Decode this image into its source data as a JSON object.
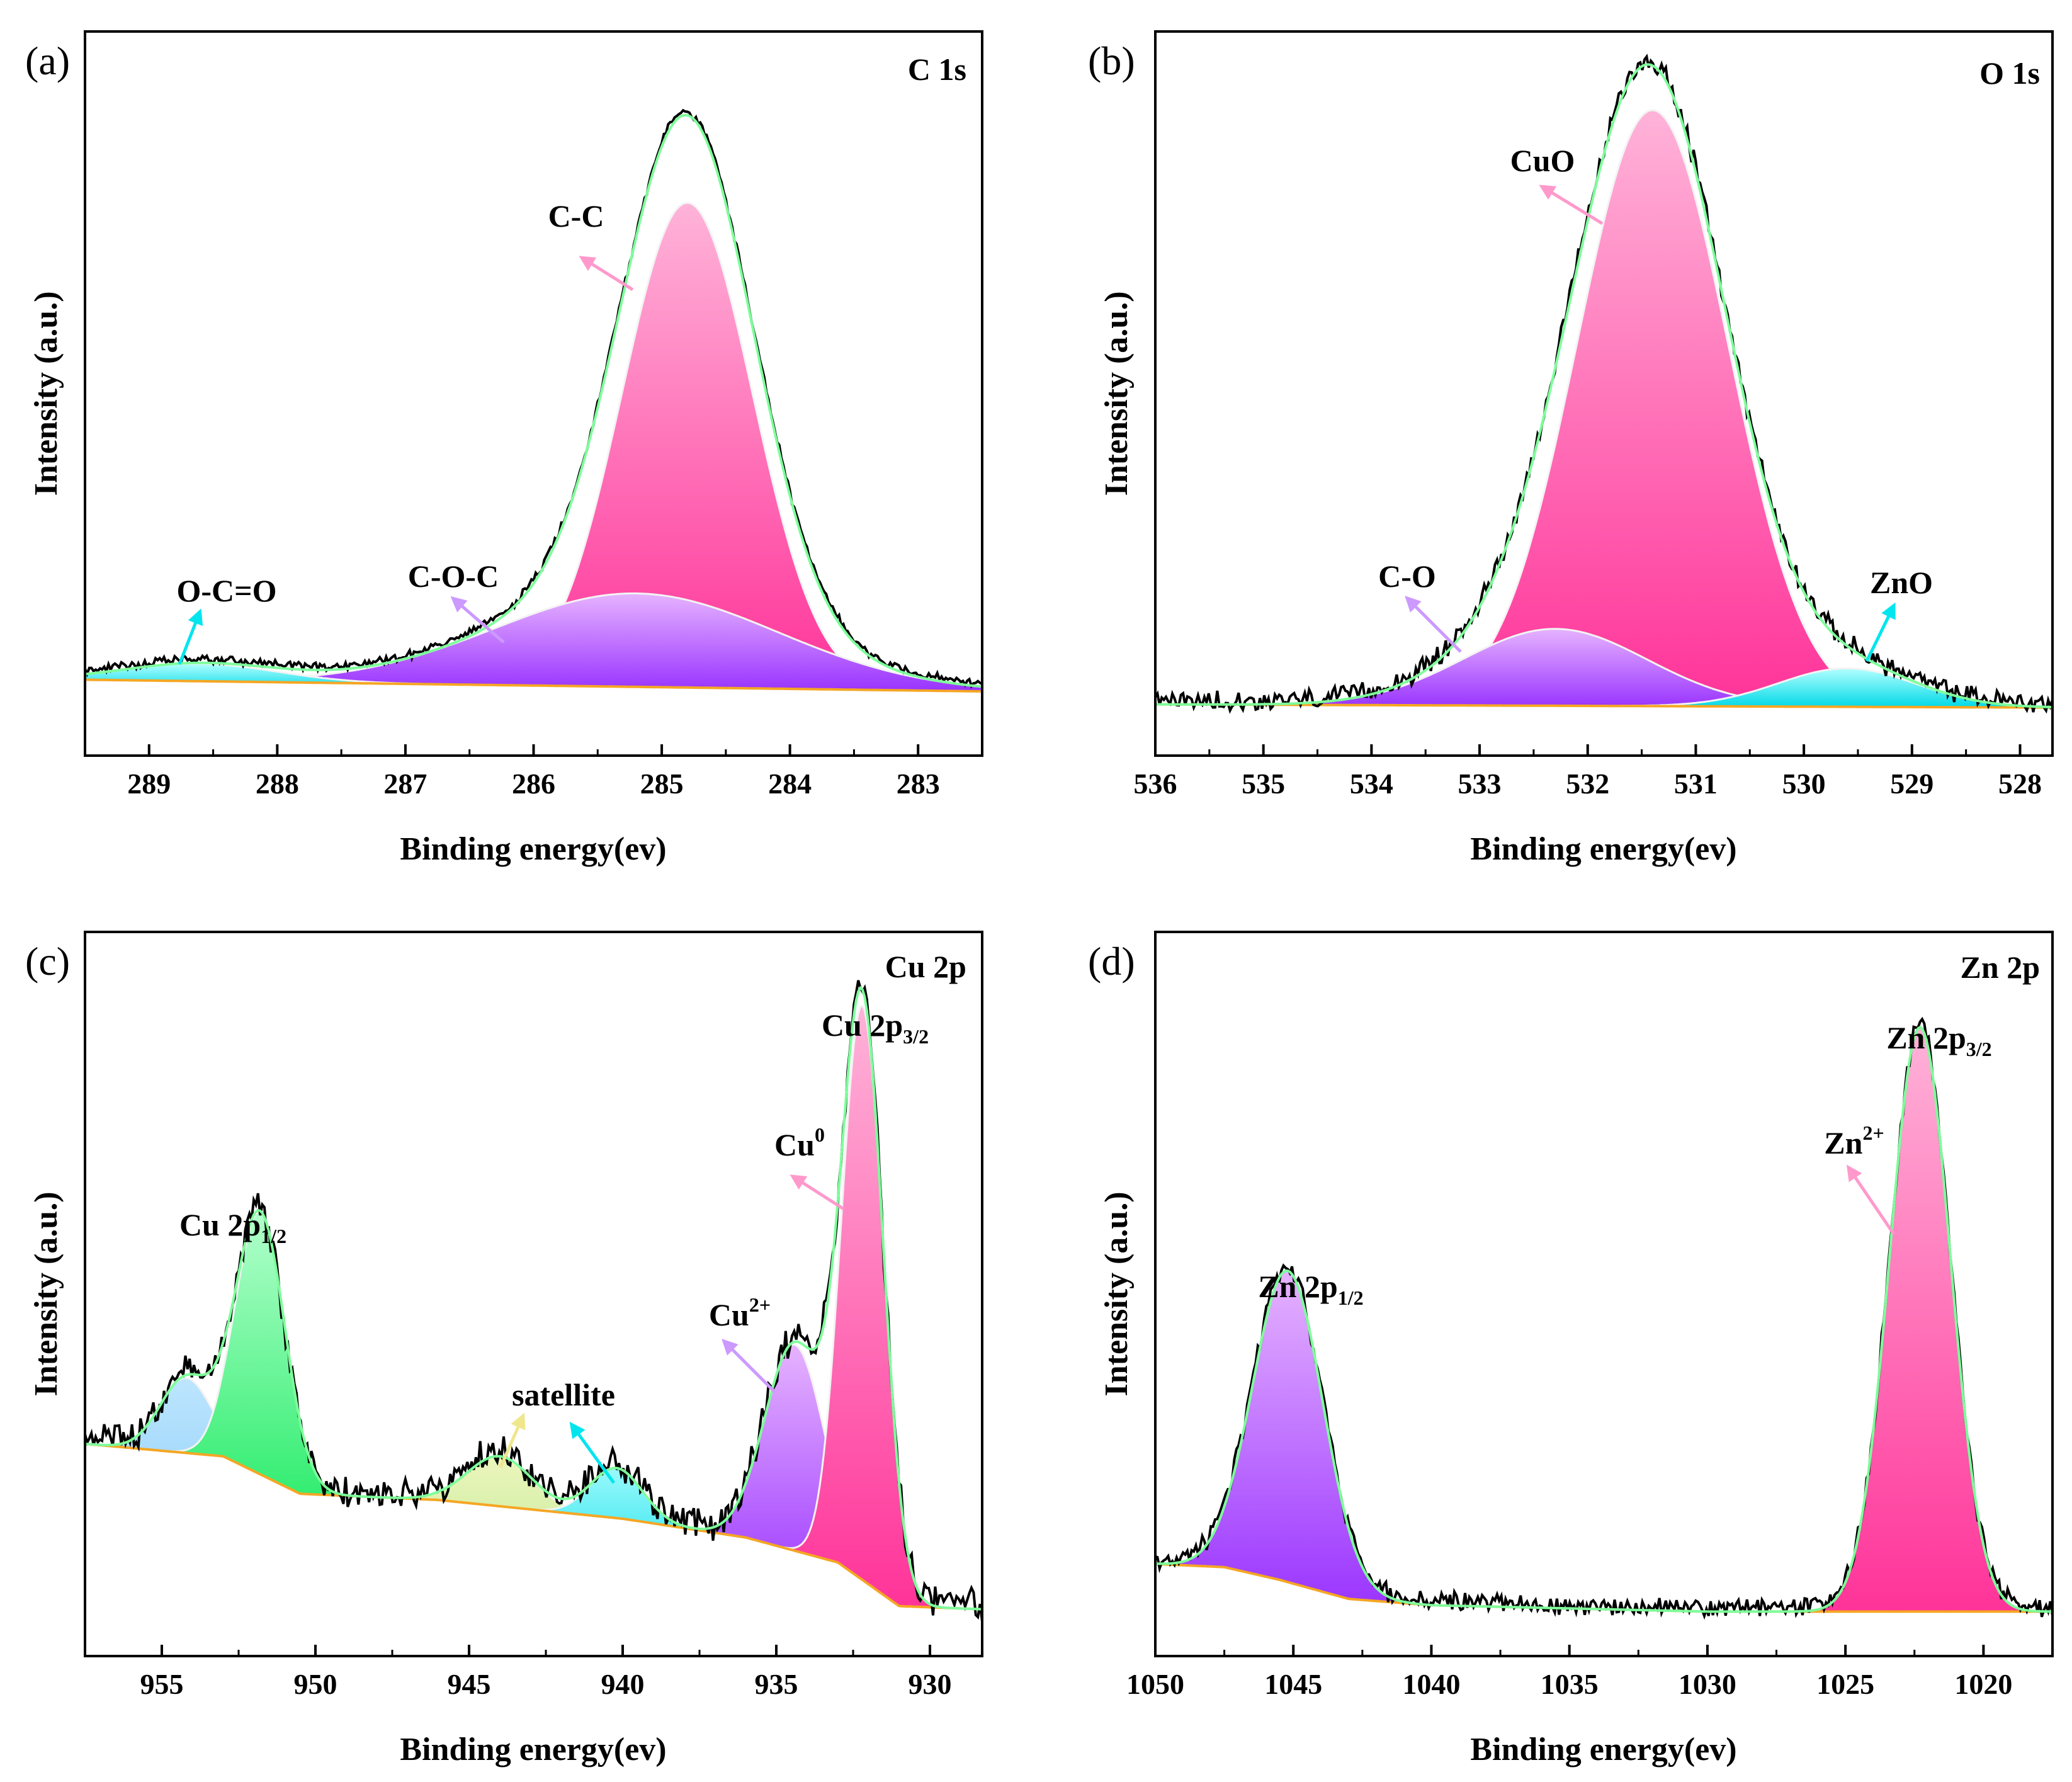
{
  "figure": {
    "panels": [
      {
        "id": "a",
        "label": "(a)",
        "core_level": "C 1s",
        "xlabel": "Binding energy(ev)",
        "ylabel": "Intensity (a.u.)",
        "xticks": [
          "289",
          "288",
          "287",
          "286",
          "285",
          "284",
          "283"
        ],
        "annotations": [
          {
            "id": "cc",
            "text": "C-C",
            "color": "#ff99cc"
          },
          {
            "id": "coc",
            "text": "C-O-C",
            "color": "#cc99ff"
          },
          {
            "id": "oco",
            "text": "O-C=O",
            "color": "#00e5ee"
          }
        ]
      },
      {
        "id": "b",
        "label": "(b)",
        "core_level": "O 1s",
        "xlabel": "Binding energy(ev)",
        "ylabel": "Intensity (a.u.)",
        "xticks": [
          "536",
          "535",
          "534",
          "533",
          "532",
          "531",
          "530",
          "529",
          "528"
        ],
        "annotations": [
          {
            "id": "cuo",
            "text": "CuO",
            "color": "#ff99cc"
          },
          {
            "id": "co",
            "text": "C-O",
            "color": "#cc99ff"
          },
          {
            "id": "zno",
            "text": "ZnO",
            "color": "#00e5ee"
          }
        ]
      },
      {
        "id": "c",
        "label": "(c)",
        "core_level": "Cu 2p",
        "xlabel": "Binding energy(ev)",
        "ylabel": "Intensity (a.u.)",
        "xticks": [
          "955",
          "950",
          "945",
          "940",
          "935",
          "930"
        ],
        "annotations": [
          {
            "id": "cu2p32",
            "text": "Cu 2p",
            "sub": "3/2",
            "sup": ""
          },
          {
            "id": "cu0",
            "text": "Cu",
            "sub": "",
            "sup": "0",
            "color": "#ff99cc"
          },
          {
            "id": "cu2p12",
            "text": "Cu 2p",
            "sub": "1/2",
            "sup": ""
          },
          {
            "id": "cu2",
            "text": "Cu",
            "sub": "",
            "sup": "2+",
            "color": "#cc99ff"
          },
          {
            "id": "sat",
            "text": "satellite",
            "color": "#f0e68c",
            "color2": "#00e5ee"
          }
        ]
      },
      {
        "id": "d",
        "label": "(d)",
        "core_level": "Zn 2p",
        "xlabel": "Binding energy(ev)",
        "ylabel": "Intensity (a.u.)",
        "xticks": [
          "1050",
          "1045",
          "1040",
          "1035",
          "1030",
          "1025",
          "1020"
        ],
        "annotations": [
          {
            "id": "zn2p32",
            "text": "Zn 2p",
            "sub": "3/2",
            "sup": ""
          },
          {
            "id": "zn2",
            "text": "Zn",
            "sub": "",
            "sup": "2+",
            "color": "#ff99cc"
          },
          {
            "id": "zn2p12",
            "text": "Zn 2p",
            "sub": "1/2",
            "sup": ""
          }
        ]
      }
    ]
  },
  "chart_data": [
    {
      "type": "area",
      "panel": "a",
      "title": "C 1s",
      "xlabel": "Binding energy(ev)",
      "ylabel": "Intensity (a.u.)",
      "xlim": [
        289.5,
        282.5
      ],
      "ylim": [
        -0.12,
        1.12
      ],
      "baseline": [
        [
          289.5,
          0.01
        ],
        [
          282.5,
          -0.01
        ]
      ],
      "components": [
        {
          "name": "C-C",
          "center": 284.8,
          "height": 0.83,
          "fwhm": 1.2,
          "color_top": "#ffb3d9",
          "color_bottom": "#ff3399"
        },
        {
          "name": "C-O-C",
          "center": 285.2,
          "height": 0.16,
          "fwhm": 2.6,
          "color_top": "#e6b3ff",
          "color_bottom": "#9933ff"
        },
        {
          "name": "O-C=O",
          "center": 288.6,
          "height": 0.03,
          "fwhm": 1.4,
          "color_top": "#b3ffff",
          "color_bottom": "#00d9e6"
        }
      ],
      "noise": 0.006
    },
    {
      "type": "area",
      "panel": "b",
      "title": "O 1s",
      "xlabel": "Binding energy(ev)",
      "ylabel": "Intensity (a.u.)",
      "xlim": [
        536,
        527.7
      ],
      "ylim": [
        -0.08,
        1.05
      ],
      "baseline": [
        [
          536,
          0.0
        ],
        [
          527.7,
          -0.005
        ]
      ],
      "components": [
        {
          "name": "CuO",
          "center": 531.4,
          "height": 0.93,
          "fwhm": 1.65,
          "color_top": "#ffb3d9",
          "color_bottom": "#ff3399"
        },
        {
          "name": "C-O",
          "center": 532.3,
          "height": 0.12,
          "fwhm": 2.0,
          "color_top": "#e6b3ff",
          "color_bottom": "#9933ff"
        },
        {
          "name": "ZnO",
          "center": 529.6,
          "height": 0.06,
          "fwhm": 1.5,
          "color_top": "#b3ffff",
          "color_bottom": "#00d9e6"
        }
      ],
      "noise": 0.012
    },
    {
      "type": "area",
      "panel": "c",
      "title": "Cu 2p",
      "xlabel": "Binding energy(ev)",
      "ylabel": "Intensity (a.u.)",
      "xlim": [
        957.5,
        928.3
      ],
      "ylim": [
        -0.08,
        1.08
      ],
      "baseline": [
        [
          957.5,
          0.26
        ],
        [
          953.0,
          0.24
        ],
        [
          950.5,
          0.18
        ],
        [
          946.0,
          0.17
        ],
        [
          940.0,
          0.14
        ],
        [
          936.0,
          0.11
        ],
        [
          933.0,
          0.07
        ],
        [
          931.0,
          0.0
        ],
        [
          928.3,
          -0.005
        ]
      ],
      "components": [
        {
          "name": "Cu 2p1/2 (shoulder)",
          "center": 954.2,
          "height": 0.12,
          "fwhm": 2.0,
          "color_top": "#bde5ff",
          "color_bottom": "#7cc7f2"
        },
        {
          "name": "Cu 2p1/2",
          "center": 951.8,
          "height": 0.42,
          "fwhm": 1.9,
          "color_top": "#b3ffcc",
          "color_bottom": "#00e64d"
        },
        {
          "name": "satellite",
          "center": 944.0,
          "height": 0.08,
          "fwhm": 2.5,
          "color_top": "#f0f7c2",
          "color_bottom": "#b9e68a"
        },
        {
          "name": "satellite",
          "center": 940.2,
          "height": 0.08,
          "fwhm": 2.0,
          "color_top": "#b3ffff",
          "color_bottom": "#00d9e6"
        },
        {
          "name": "Cu2+",
          "center": 934.4,
          "height": 0.33,
          "fwhm": 2.3,
          "color_top": "#e6b3ff",
          "color_bottom": "#9933ff"
        },
        {
          "name": "Cu0",
          "center": 932.2,
          "height": 0.92,
          "fwhm": 1.6,
          "color_top": "#ffb3d9",
          "color_bottom": "#ff3399"
        }
      ],
      "noise": 0.02
    },
    {
      "type": "area",
      "panel": "d",
      "title": "Zn 2p",
      "xlabel": "Binding energy(ev)",
      "ylabel": "Intensity (a.u.)",
      "xlim": [
        1050,
        1017.5
      ],
      "ylim": [
        -0.07,
        1.07
      ],
      "baseline": [
        [
          1050,
          0.075
        ],
        [
          1047.5,
          0.07
        ],
        [
          1045.5,
          0.05
        ],
        [
          1043,
          0.02
        ],
        [
          1040,
          0.01
        ],
        [
          1030,
          0.0
        ],
        [
          1017.5,
          0.0
        ]
      ],
      "components": [
        {
          "name": "Zn 2p1/2",
          "center": 1045.2,
          "height": 0.49,
          "fwhm": 3.0,
          "color_top": "#e6b3ff",
          "color_bottom": "#9933ff"
        },
        {
          "name": "Zn2+",
          "center": 1022.3,
          "height": 0.92,
          "fwhm": 2.6,
          "color_top": "#ffb3d9",
          "color_bottom": "#ff3399"
        }
      ],
      "noise": 0.012
    }
  ]
}
